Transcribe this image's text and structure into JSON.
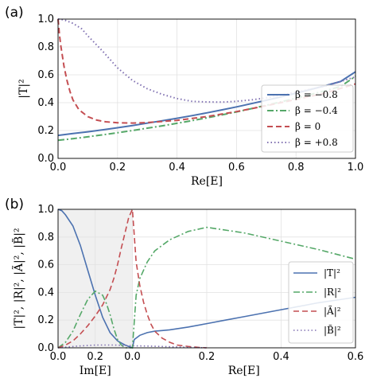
{
  "chart_data": [
    {
      "type": "line",
      "panel_label": "(a)",
      "xlabel": "Re[E]",
      "ylabel": "|T|²",
      "xlim": [
        0,
        1
      ],
      "ylim": [
        0,
        1
      ],
      "xticks": [
        "0.0",
        "0.2",
        "0.4",
        "0.6",
        "0.8",
        "1.0"
      ],
      "yticks": [
        "0.0",
        "0.2",
        "0.4",
        "0.6",
        "0.8",
        "1.0"
      ],
      "grid": true,
      "legend_position": "right",
      "series": [
        {
          "name": "β = −0.8",
          "color": "#4c72b0",
          "style": "solid",
          "x": [
            0,
            0.05,
            0.1,
            0.15,
            0.2,
            0.25,
            0.3,
            0.35,
            0.4,
            0.45,
            0.5,
            0.55,
            0.6,
            0.65,
            0.7,
            0.75,
            0.8,
            0.85,
            0.9,
            0.95,
            1.0
          ],
          "y": [
            0.165,
            0.178,
            0.191,
            0.205,
            0.22,
            0.236,
            0.253,
            0.27,
            0.288,
            0.307,
            0.327,
            0.348,
            0.37,
            0.393,
            0.417,
            0.442,
            0.468,
            0.495,
            0.523,
            0.552,
            0.622
          ]
        },
        {
          "name": "β = −0.4",
          "color": "#55a868",
          "style": "dashdot",
          "x": [
            0,
            0.05,
            0.1,
            0.15,
            0.2,
            0.25,
            0.3,
            0.35,
            0.4,
            0.45,
            0.5,
            0.55,
            0.6,
            0.65,
            0.7,
            0.75,
            0.8,
            0.85,
            0.9,
            0.95,
            1.0
          ],
          "y": [
            0.13,
            0.142,
            0.155,
            0.169,
            0.184,
            0.2,
            0.217,
            0.234,
            0.252,
            0.271,
            0.291,
            0.312,
            0.334,
            0.357,
            0.381,
            0.406,
            0.432,
            0.459,
            0.487,
            0.516,
            0.59
          ]
        },
        {
          "name": "β = 0",
          "color": "#c44e52",
          "style": "dashed",
          "x": [
            0,
            0.005,
            0.01,
            0.02,
            0.03,
            0.04,
            0.05,
            0.07,
            0.1,
            0.13,
            0.16,
            0.2,
            0.25,
            0.3,
            0.4,
            0.5,
            0.6,
            0.7,
            0.8,
            0.9,
            1.0
          ],
          "y": [
            1.0,
            0.88,
            0.8,
            0.66,
            0.56,
            0.48,
            0.42,
            0.35,
            0.3,
            0.275,
            0.263,
            0.256,
            0.254,
            0.257,
            0.273,
            0.3,
            0.336,
            0.378,
            0.423,
            0.47,
            0.535
          ]
        },
        {
          "name": "β = +0.8",
          "color": "#8172b2",
          "style": "dotted",
          "x": [
            0,
            0.02,
            0.05,
            0.08,
            0.1,
            0.15,
            0.2,
            0.25,
            0.3,
            0.35,
            0.4,
            0.45,
            0.5,
            0.55,
            0.6,
            0.65,
            0.7,
            0.75,
            0.8,
            0.9,
            1.0
          ],
          "y": [
            1.0,
            0.995,
            0.97,
            0.93,
            0.88,
            0.77,
            0.65,
            0.56,
            0.5,
            0.46,
            0.43,
            0.41,
            0.405,
            0.404,
            0.41,
            0.42,
            0.435,
            0.455,
            0.475,
            0.52,
            0.585
          ]
        }
      ]
    },
    {
      "type": "line",
      "panel_label": "(b)",
      "xlabel_left": "Im[E]",
      "xlabel_right": "Re[E]",
      "ylabel": "|T|², |R|², |Ã|², |B̃|²",
      "xlim": [
        -0.2,
        0.6
      ],
      "ylim": [
        0,
        1
      ],
      "shaded_region": [
        -0.2,
        0.0
      ],
      "xticks": [
        "0.0",
        "0.2",
        "0.0",
        "0.2",
        "0.4",
        "0.6"
      ],
      "yticks": [
        "0.0",
        "0.2",
        "0.4",
        "0.6",
        "0.8",
        "1.0"
      ],
      "grid": true,
      "legend_position": "right",
      "series": [
        {
          "name": "|T|²",
          "color": "#4c72b0",
          "style": "solid",
          "x": [
            -0.2,
            -0.19,
            -0.18,
            -0.16,
            -0.14,
            -0.12,
            -0.1,
            -0.08,
            -0.06,
            -0.04,
            -0.02,
            -0.005,
            0.0,
            0.005,
            0.02,
            0.04,
            0.06,
            0.08,
            0.1,
            0.15,
            0.2,
            0.25,
            0.3,
            0.35,
            0.4,
            0.45,
            0.5,
            0.55,
            0.6
          ],
          "y": [
            1.0,
            0.99,
            0.96,
            0.88,
            0.74,
            0.56,
            0.38,
            0.22,
            0.11,
            0.05,
            0.02,
            0.005,
            0.0,
            0.06,
            0.09,
            0.11,
            0.12,
            0.125,
            0.13,
            0.15,
            0.175,
            0.2,
            0.225,
            0.25,
            0.275,
            0.3,
            0.325,
            0.345,
            0.365
          ]
        },
        {
          "name": "|R|²",
          "color": "#55a868",
          "style": "dashdot",
          "x": [
            -0.2,
            -0.18,
            -0.16,
            -0.14,
            -0.12,
            -0.1,
            -0.08,
            -0.07,
            -0.06,
            -0.05,
            -0.04,
            -0.03,
            -0.02,
            -0.01,
            0.0,
            0.01,
            0.02,
            0.04,
            0.06,
            0.1,
            0.15,
            0.2,
            0.3,
            0.4,
            0.5,
            0.6
          ],
          "y": [
            0.0,
            0.04,
            0.12,
            0.24,
            0.35,
            0.41,
            0.38,
            0.32,
            0.24,
            0.14,
            0.06,
            0.02,
            0.0,
            0.0,
            0.0,
            0.38,
            0.5,
            0.62,
            0.7,
            0.78,
            0.84,
            0.87,
            0.83,
            0.77,
            0.71,
            0.64
          ]
        },
        {
          "name": "|Ã|²",
          "color": "#c44e52",
          "style": "dashed",
          "x": [
            -0.2,
            -0.18,
            -0.16,
            -0.14,
            -0.12,
            -0.1,
            -0.08,
            -0.06,
            -0.05,
            -0.04,
            -0.03,
            -0.02,
            -0.01,
            0.0,
            0.01,
            0.02,
            0.03,
            0.04,
            0.05,
            0.06,
            0.08,
            0.1,
            0.12,
            0.15,
            0.18,
            0.2
          ],
          "y": [
            0.0,
            0.02,
            0.05,
            0.1,
            0.16,
            0.23,
            0.31,
            0.42,
            0.5,
            0.6,
            0.72,
            0.83,
            0.94,
            1.0,
            0.62,
            0.45,
            0.33,
            0.24,
            0.17,
            0.12,
            0.07,
            0.04,
            0.02,
            0.01,
            0.003,
            0.0
          ]
        },
        {
          "name": "|B̃|²",
          "color": "#8172b2",
          "style": "dotted",
          "x": [
            -0.2,
            -0.15,
            -0.1,
            -0.05,
            0.0,
            0.05,
            0.1,
            0.15,
            0.2
          ],
          "y": [
            0.0,
            0.012,
            0.02,
            0.02,
            0.015,
            0.012,
            0.008,
            0.004,
            0.0
          ]
        }
      ]
    }
  ]
}
